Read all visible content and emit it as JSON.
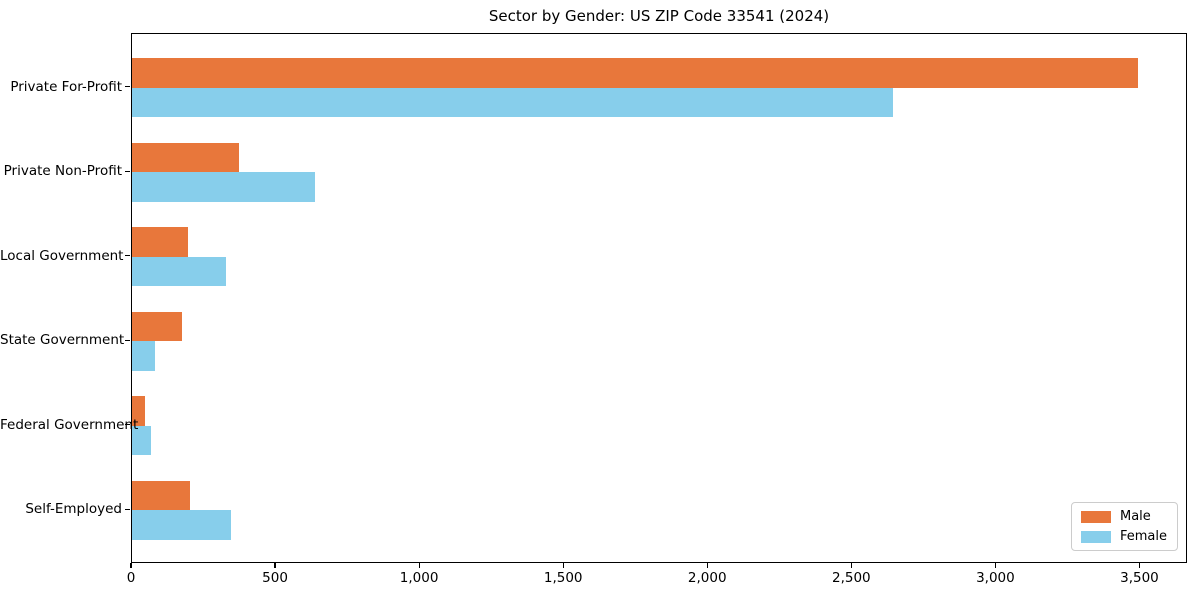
{
  "chart_data": {
    "type": "bar",
    "orientation": "horizontal",
    "title": "Sector by Gender: US ZIP Code 33541 (2024)",
    "categories": [
      "Private For-Profit",
      "Private Non-Profit",
      "Local Government",
      "State Government",
      "Federal Government",
      "Self-Employed"
    ],
    "series": [
      {
        "name": "Male",
        "color": "#e8773b",
        "values": [
          3490,
          370,
          195,
          175,
          45,
          200
        ]
      },
      {
        "name": "Female",
        "color": "#87ceeb",
        "values": [
          2640,
          635,
          325,
          80,
          65,
          345
        ]
      }
    ],
    "xlabel": "",
    "ylabel": "",
    "xlim": [
      0,
      3665
    ],
    "xticks": {
      "values": [
        0,
        500,
        1000,
        1500,
        2000,
        2500,
        3000,
        3500
      ],
      "labels": [
        "0",
        "500",
        "1,000",
        "1,500",
        "2,000",
        "2,500",
        "3,000",
        "3,500"
      ]
    },
    "legend": {
      "position": "lower right"
    },
    "grid": false,
    "background": "#ffffff",
    "bar_height_fraction": 0.35
  }
}
